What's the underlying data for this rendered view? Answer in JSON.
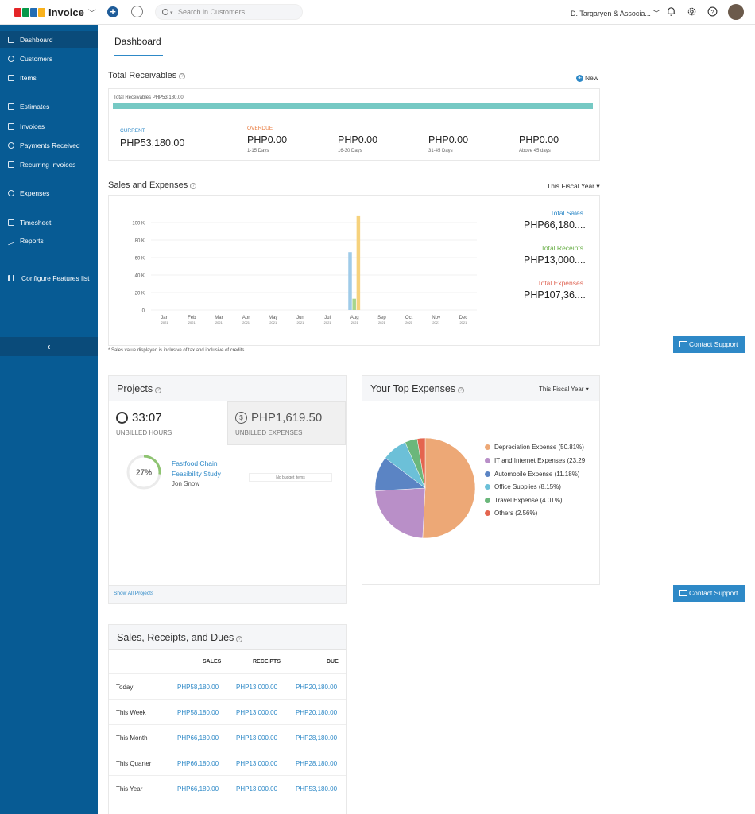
{
  "topbar": {
    "logo_letters": [
      "Z",
      "O",
      "H",
      "O"
    ],
    "logo_colors": [
      "#e42527",
      "#089949",
      "#226db4",
      "#f9b21d"
    ],
    "app_name": "Invoice",
    "search_placeholder": "Search in Customers",
    "org_name": "D. Targaryen & Associa..."
  },
  "sidebar": {
    "items": [
      {
        "label": "Dashboard",
        "icon": "home-icon",
        "active": true
      },
      {
        "label": "Customers",
        "icon": "user-icon"
      },
      {
        "label": "Items",
        "icon": "box-icon"
      },
      {
        "label": "Estimates",
        "icon": "estimate-icon"
      },
      {
        "label": "Invoices",
        "icon": "invoice-icon"
      },
      {
        "label": "Payments Received",
        "icon": "payment-icon"
      },
      {
        "label": "Recurring Invoices",
        "icon": "recurring-icon"
      },
      {
        "label": "Expenses",
        "icon": "expense-icon"
      },
      {
        "label": "Timesheet",
        "icon": "timesheet-icon"
      },
      {
        "label": "Reports",
        "icon": "reports-icon"
      },
      {
        "label": "Configure Features list",
        "icon": "configure-icon"
      }
    ],
    "collapse_glyph": "‹"
  },
  "tabs": {
    "dashboard": "Dashboard"
  },
  "receivables": {
    "title": "Total Receivables",
    "new_label": "New",
    "bar_label": "Total Receivables PHP53,180.00",
    "current_label": "CURRENT",
    "current_value": "PHP53,180.00",
    "overdue_label": "OVERDUE",
    "buckets": [
      {
        "value": "PHP0.00",
        "label": "1-15 Days"
      },
      {
        "value": "PHP0.00",
        "label": "16-30 Days"
      },
      {
        "value": "PHP0.00",
        "label": "31-45 Days"
      },
      {
        "value": "PHP0.00",
        "label": "Above 45 days"
      }
    ]
  },
  "sales_expenses": {
    "title": "Sales and Expenses",
    "period": "This Fiscal Year ▾",
    "total_sales_label": "Total Sales",
    "total_sales_value": "PHP66,180....",
    "total_receipts_label": "Total Receipts",
    "total_receipts_value": "PHP13,000....",
    "total_expenses_label": "Total Expenses",
    "total_expenses_value": "PHP107,36....",
    "footnote": "* Sales value displayed is inclusive of tax and inclusive of credits.",
    "colors": {
      "sales": "#9fcbe9",
      "receipts": "#a8d58c",
      "expenses": "#f6d27d"
    }
  },
  "chart_data": {
    "type": "bar",
    "categories": [
      "Jan",
      "Feb",
      "Mar",
      "Apr",
      "May",
      "Jun",
      "Jul",
      "Aug",
      "Sep",
      "Oct",
      "Nov",
      "Dec"
    ],
    "category_year": "2021",
    "ylim": [
      0,
      100000
    ],
    "yticks": [
      "0",
      "20 K",
      "40 K",
      "60 K",
      "80 K",
      "100 K"
    ],
    "series": [
      {
        "name": "Sales",
        "values": [
          0,
          0,
          0,
          0,
          0,
          0,
          0,
          66180,
          0,
          0,
          0,
          0
        ]
      },
      {
        "name": "Receipts",
        "values": [
          0,
          0,
          0,
          0,
          0,
          0,
          0,
          13000,
          0,
          0,
          0,
          0
        ]
      },
      {
        "name": "Expenses",
        "values": [
          0,
          0,
          0,
          0,
          0,
          0,
          0,
          107360,
          0,
          0,
          0,
          0
        ]
      }
    ]
  },
  "contact_support": "Contact Support",
  "projects": {
    "title": "Projects",
    "unbilled_hours_value": "33:07",
    "unbilled_hours_label": "UNBILLED HOURS",
    "unbilled_expenses_value": "PHP1,619.50",
    "unbilled_expenses_label": "UNBILLED EXPENSES",
    "project_name": "Fastfood Chain Feasibility Study",
    "project_owner": "Jon Snow",
    "progress_percent": 27,
    "progress_label": "27%",
    "no_budget": "No budget items",
    "show_all": "Show All Projects"
  },
  "top_expenses": {
    "title": "Your Top Expenses",
    "period": "This Fiscal Year ▾",
    "slices": [
      {
        "label": "Depreciation Expense (50.81%)",
        "value": 50.81,
        "color": "#eda876"
      },
      {
        "label": "IT and Internet Expenses (23.29",
        "value": 23.29,
        "color": "#b98fc8"
      },
      {
        "label": "Automobile Expense (11.18%)",
        "value": 11.18,
        "color": "#5b84c4"
      },
      {
        "label": "Office Supplies (8.15%)",
        "value": 8.15,
        "color": "#6cc0d8"
      },
      {
        "label": "Travel Expense (4.01%)",
        "value": 4.01,
        "color": "#6bb77b"
      },
      {
        "label": "Others (2.56%)",
        "value": 2.56,
        "color": "#e4654f"
      }
    ]
  },
  "srd": {
    "title": "Sales, Receipts, and Dues",
    "headers": [
      "SALES",
      "RECEIPTS",
      "DUE"
    ],
    "rows": [
      {
        "label": "Today",
        "sales": "PHP58,180.00",
        "receipts": "PHP13,000.00",
        "due": "PHP20,180.00"
      },
      {
        "label": "This Week",
        "sales": "PHP58,180.00",
        "receipts": "PHP13,000.00",
        "due": "PHP20,180.00"
      },
      {
        "label": "This Month",
        "sales": "PHP66,180.00",
        "receipts": "PHP13,000.00",
        "due": "PHP28,180.00"
      },
      {
        "label": "This Quarter",
        "sales": "PHP66,180.00",
        "receipts": "PHP13,000.00",
        "due": "PHP28,180.00"
      },
      {
        "label": "This Year",
        "sales": "PHP66,180.00",
        "receipts": "PHP13,000.00",
        "due": "PHP53,180.00"
      }
    ]
  }
}
